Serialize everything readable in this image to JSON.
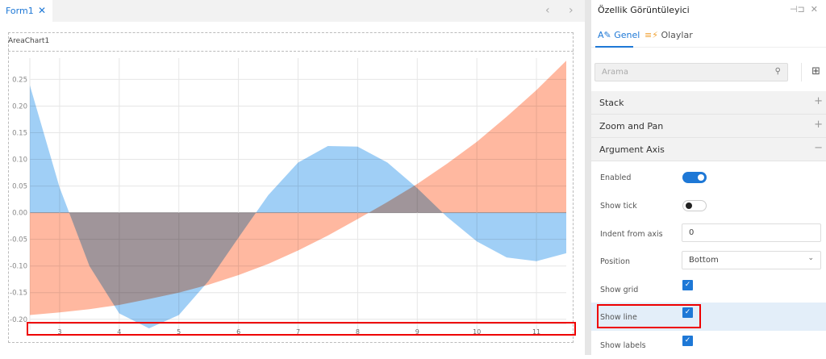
{
  "designer": {
    "tab_label": "Form1",
    "tab_close_icon": "close-icon",
    "nav_prev": "‹",
    "nav_next": "›"
  },
  "chart_title": "AreaChart1",
  "chart_data": {
    "type": "area",
    "x": [
      2.5,
      3,
      3.5,
      4,
      4.5,
      5,
      5.5,
      6,
      6.5,
      7,
      7.5,
      8,
      8.5,
      9,
      9.5,
      10,
      10.5,
      11,
      11.5
    ],
    "series": [
      {
        "color": "#8fc7f5",
        "values": [
          0.239,
          0.047,
          -0.1,
          -0.189,
          -0.217,
          -0.192,
          -0.128,
          -0.047,
          0.033,
          0.094,
          0.125,
          0.124,
          0.094,
          0.046,
          -0.008,
          -0.054,
          -0.084,
          -0.091,
          -0.076
        ]
      },
      {
        "color": "#ffab8f",
        "values": [
          -0.192,
          -0.187,
          -0.181,
          -0.173,
          -0.162,
          -0.15,
          -0.135,
          -0.117,
          -0.096,
          -0.071,
          -0.043,
          -0.012,
          0.02,
          0.054,
          0.092,
          0.133,
          0.18,
          0.23,
          0.285
        ]
      }
    ],
    "xlim": [
      2.5,
      11.5
    ],
    "ylim": [
      -0.22,
      0.29
    ],
    "x_ticks": [
      "3",
      "4",
      "5",
      "6",
      "7",
      "8",
      "9",
      "10",
      "11"
    ],
    "y_ticks": [
      "0.25",
      "0.20",
      "0.15",
      "0.10",
      "0.05",
      "0.00",
      "-0.05",
      "-0.10",
      "-0.15",
      "-0.20"
    ],
    "grid": true
  },
  "panel": {
    "title": "Özellik Görüntüleyici",
    "pin_icon": "⊣⊐",
    "close_icon": "✕",
    "tabs": [
      {
        "label": "Genel",
        "icon": "A✎"
      },
      {
        "label": "Olaylar",
        "icon": "≡⚡"
      }
    ],
    "search_placeholder": "Arama",
    "sections": [
      {
        "label": "Stack",
        "sign": "+"
      },
      {
        "label": "Zoom and Pan",
        "sign": "+"
      },
      {
        "label": "Argument Axis",
        "sign": "−"
      }
    ],
    "props": {
      "enabled": {
        "label": "Enabled",
        "value": true
      },
      "show_tick": {
        "label": "Show tick",
        "value": false
      },
      "indent": {
        "label": "Indent from axis",
        "value": "0"
      },
      "position": {
        "label": "Position",
        "value": "Bottom"
      },
      "show_grid": {
        "label": "Show grid",
        "value": true
      },
      "show_line": {
        "label": "Show line",
        "value": true
      },
      "show_labels": {
        "label": "Show labels",
        "value": true
      }
    }
  }
}
